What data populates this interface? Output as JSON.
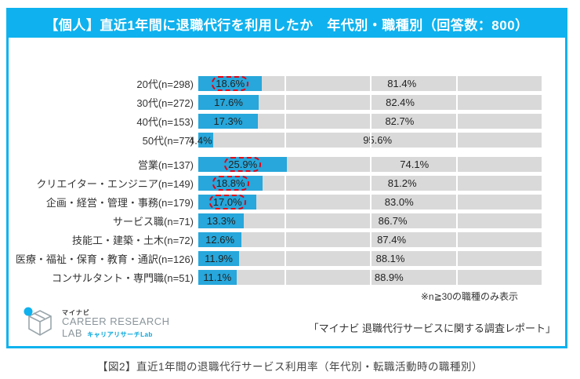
{
  "title": "【個人】直近1年間に退職代行を利用したか　年代別・職種別（回答数：800）",
  "chart_data": {
    "type": "bar",
    "orientation": "horizontal",
    "stacked": true,
    "unit": "%",
    "xlim": [
      0,
      100
    ],
    "gridlines_pct": [
      25,
      50,
      75
    ],
    "groups": [
      {
        "id": "age",
        "rows": [
          {
            "label": "20代(n=298)",
            "used": 18.6,
            "rest": 81.4,
            "highlight": true
          },
          {
            "label": "30代(n=272)",
            "used": 17.6,
            "rest": 82.4,
            "highlight": false
          },
          {
            "label": "40代(n=153)",
            "used": 17.3,
            "rest": 82.7,
            "highlight": false
          },
          {
            "label": "50代(n=77)",
            "used": 4.4,
            "rest": 95.6,
            "highlight": false
          }
        ]
      },
      {
        "id": "job",
        "rows": [
          {
            "label": "営業(n=137)",
            "used": 25.9,
            "rest": 74.1,
            "highlight": true
          },
          {
            "label": "クリエイター・エンジニア(n=149)",
            "used": 18.8,
            "rest": 81.2,
            "highlight": true
          },
          {
            "label": "企画・経営・管理・事務(n=179)",
            "used": 17.0,
            "rest": 83.0,
            "highlight": true
          },
          {
            "label": "サービス職(n=71)",
            "used": 13.3,
            "rest": 86.7,
            "highlight": false
          },
          {
            "label": "技能工・建築・土木(n=72)",
            "used": 12.6,
            "rest": 87.4,
            "highlight": false
          },
          {
            "label": "医療・福祉・保育・教育・通訳(n=126)",
            "used": 11.9,
            "rest": 88.1,
            "highlight": false
          },
          {
            "label": "コンサルタント・専門職(n=51)",
            "used": 11.1,
            "rest": 88.9,
            "highlight": false
          }
        ]
      }
    ],
    "note": "※n≧30の職種のみ表示"
  },
  "colors": {
    "accent": "#0fb2ee",
    "bar_used": "#27a7db",
    "bar_rest": "#d9d9d9",
    "highlight_red": "#e60012"
  },
  "footer": {
    "brand_jp": "マイナビ",
    "brand_line1": "CAREER RESEARCH",
    "brand_line2": "LAB",
    "brand_sub": "キャリアリサーチLab",
    "source": "「マイナビ 退職代行サービスに関する調査レポート」"
  },
  "caption": "【図2】直近1年間の退職代行サービス利用率（年代別・転職活動時の職種別）"
}
